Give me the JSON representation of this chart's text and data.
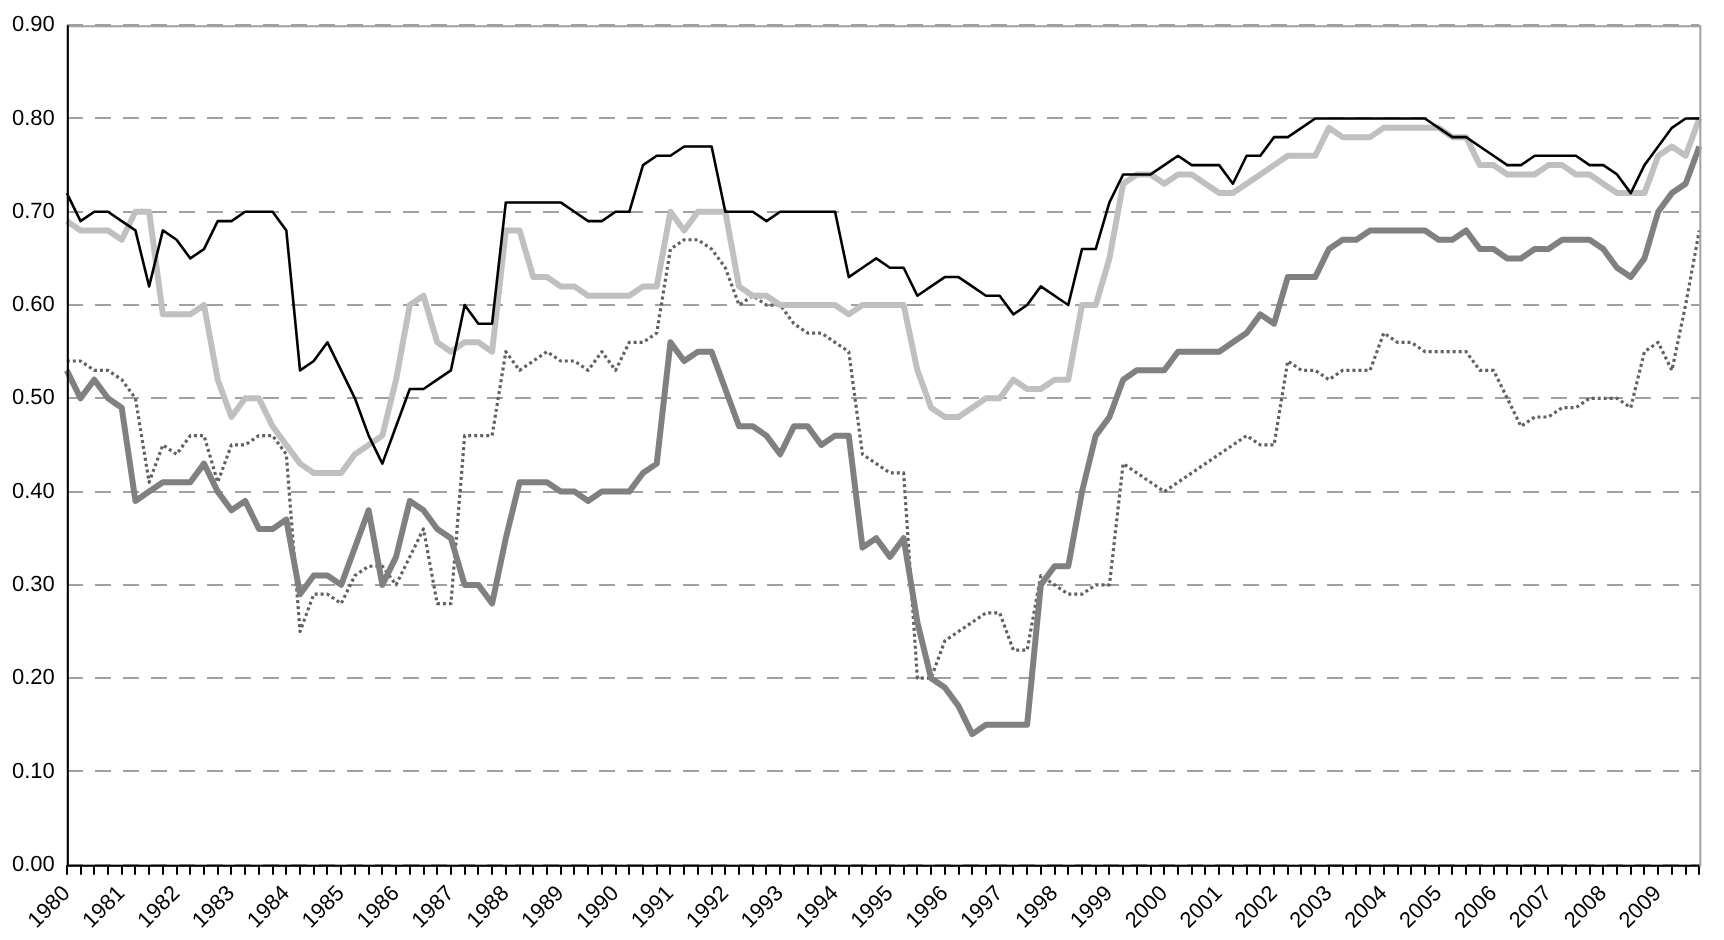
{
  "chart_data": {
    "type": "line",
    "categories": [
      "1980",
      null,
      null,
      null,
      "1981",
      null,
      null,
      null,
      "1982",
      null,
      null,
      null,
      "1983",
      null,
      null,
      null,
      "1984",
      null,
      null,
      null,
      "1985",
      null,
      null,
      null,
      "1986",
      null,
      null,
      null,
      "1987",
      null,
      null,
      null,
      "1988",
      null,
      null,
      null,
      "1989",
      null,
      null,
      null,
      "1990",
      null,
      null,
      null,
      "1991",
      null,
      null,
      null,
      "1992",
      null,
      null,
      null,
      "1993",
      null,
      null,
      null,
      "1994",
      null,
      null,
      null,
      "1995",
      null,
      null,
      null,
      "1996",
      null,
      null,
      null,
      "1997",
      null,
      null,
      null,
      "1998",
      null,
      null,
      null,
      "1999",
      null,
      null,
      null,
      "2000",
      null,
      null,
      null,
      "2001",
      null,
      null,
      null,
      "2002",
      null,
      null,
      null,
      "2003",
      null,
      null,
      null,
      "2004",
      null,
      null,
      null,
      "2005",
      null,
      null,
      null,
      "2006",
      null,
      null,
      null,
      "2007",
      null,
      null,
      null,
      "2008",
      null,
      null,
      null,
      "2009",
      null,
      null,
      null
    ],
    "series": [
      {
        "color": "#000000",
        "line_style": "solid",
        "values": [
          0.72,
          0.69,
          0.7,
          0.7,
          0.69,
          0.68,
          0.62,
          0.68,
          0.67,
          0.65,
          0.66,
          0.69,
          0.69,
          0.7,
          0.7,
          0.7,
          0.68,
          0.53,
          0.54,
          0.56,
          0.53,
          0.5,
          0.46,
          0.43,
          0.47,
          0.51,
          0.51,
          0.52,
          0.53,
          0.6,
          0.58,
          0.58,
          0.71,
          0.71,
          0.71,
          0.71,
          0.71,
          0.7,
          0.69,
          0.69,
          0.7,
          0.7,
          0.75,
          0.76,
          0.76,
          0.77,
          0.77,
          0.77,
          0.7,
          0.7,
          0.7,
          0.69,
          0.7,
          0.7,
          0.7,
          0.7,
          0.7,
          0.63,
          0.64,
          0.65,
          0.64,
          0.64,
          0.61,
          0.62,
          0.63,
          0.63,
          0.62,
          0.61,
          0.61,
          0.59,
          0.6,
          0.62,
          0.61,
          0.6,
          0.66,
          0.66,
          0.71,
          0.74,
          0.74,
          0.74,
          0.75,
          0.76,
          0.75,
          0.75,
          0.75,
          0.73,
          0.76,
          0.76,
          0.78,
          0.78,
          0.79,
          0.8,
          0.8,
          0.8,
          0.8,
          0.8,
          0.8,
          0.8,
          0.8,
          0.8,
          0.79,
          0.78,
          0.78,
          0.77,
          0.76,
          0.75,
          0.75,
          0.76,
          0.76,
          0.76,
          0.76,
          0.75,
          0.75,
          0.74,
          0.72,
          0.75,
          0.77,
          0.79,
          0.8,
          0.8
        ]
      },
      {
        "color": "#c0c0c0",
        "line_style": "solid",
        "values": [
          0.69,
          0.68,
          0.68,
          0.68,
          0.67,
          0.7,
          0.7,
          0.59,
          0.59,
          0.59,
          0.6,
          0.52,
          0.48,
          0.5,
          0.5,
          0.47,
          0.45,
          0.43,
          0.42,
          0.42,
          0.42,
          0.44,
          0.45,
          0.46,
          0.52,
          0.6,
          0.61,
          0.56,
          0.55,
          0.56,
          0.56,
          0.55,
          0.68,
          0.68,
          0.63,
          0.63,
          0.62,
          0.62,
          0.61,
          0.61,
          0.61,
          0.61,
          0.62,
          0.62,
          0.7,
          0.68,
          0.7,
          0.7,
          0.7,
          0.62,
          0.61,
          0.61,
          0.6,
          0.6,
          0.6,
          0.6,
          0.6,
          0.59,
          0.6,
          0.6,
          0.6,
          0.6,
          0.53,
          0.49,
          0.48,
          0.48,
          0.49,
          0.5,
          0.5,
          0.52,
          0.51,
          0.51,
          0.52,
          0.52,
          0.6,
          0.6,
          0.65,
          0.73,
          0.74,
          0.74,
          0.73,
          0.74,
          0.74,
          0.73,
          0.72,
          0.72,
          0.73,
          0.74,
          0.75,
          0.76,
          0.76,
          0.76,
          0.79,
          0.78,
          0.78,
          0.78,
          0.79,
          0.79,
          0.79,
          0.79,
          0.79,
          0.78,
          0.78,
          0.75,
          0.75,
          0.74,
          0.74,
          0.74,
          0.75,
          0.75,
          0.74,
          0.74,
          0.73,
          0.72,
          0.72,
          0.72,
          0.76,
          0.77,
          0.76,
          0.8
        ]
      },
      {
        "color": "#808080",
        "line_style": "solid",
        "values": [
          0.53,
          0.5,
          0.52,
          0.5,
          0.49,
          0.39,
          0.4,
          0.41,
          0.41,
          0.41,
          0.43,
          0.4,
          0.38,
          0.39,
          0.36,
          0.36,
          0.37,
          0.29,
          0.31,
          0.31,
          0.3,
          0.34,
          0.38,
          0.3,
          0.33,
          0.39,
          0.38,
          0.36,
          0.35,
          0.3,
          0.3,
          0.28,
          0.35,
          0.41,
          0.41,
          0.41,
          0.4,
          0.4,
          0.39,
          0.4,
          0.4,
          0.4,
          0.42,
          0.43,
          0.56,
          0.54,
          0.55,
          0.55,
          0.51,
          0.47,
          0.47,
          0.46,
          0.44,
          0.47,
          0.47,
          0.45,
          0.46,
          0.46,
          0.34,
          0.35,
          0.33,
          0.35,
          0.26,
          0.2,
          0.19,
          0.17,
          0.14,
          0.15,
          0.15,
          0.15,
          0.15,
          0.3,
          0.32,
          0.32,
          0.4,
          0.46,
          0.48,
          0.52,
          0.53,
          0.53,
          0.53,
          0.55,
          0.55,
          0.55,
          0.55,
          0.56,
          0.57,
          0.59,
          0.58,
          0.63,
          0.63,
          0.63,
          0.66,
          0.67,
          0.67,
          0.68,
          0.68,
          0.68,
          0.68,
          0.68,
          0.67,
          0.67,
          0.68,
          0.66,
          0.66,
          0.65,
          0.65,
          0.66,
          0.66,
          0.67,
          0.67,
          0.67,
          0.66,
          0.64,
          0.63,
          0.65,
          0.7,
          0.72,
          0.73,
          0.77
        ]
      },
      {
        "color": "#606060",
        "line_style": "dotted",
        "values": [
          0.54,
          0.54,
          0.53,
          0.53,
          0.52,
          0.5,
          0.41,
          0.45,
          0.44,
          0.46,
          0.46,
          0.41,
          0.45,
          0.45,
          0.46,
          0.46,
          0.44,
          0.25,
          0.29,
          0.29,
          0.28,
          0.31,
          0.32,
          0.32,
          0.3,
          0.33,
          0.36,
          0.28,
          0.28,
          0.46,
          0.46,
          0.46,
          0.55,
          0.53,
          0.54,
          0.55,
          0.54,
          0.54,
          0.53,
          0.55,
          0.53,
          0.56,
          0.56,
          0.57,
          0.66,
          0.67,
          0.67,
          0.66,
          0.64,
          0.6,
          0.61,
          0.6,
          0.6,
          0.58,
          0.57,
          0.57,
          0.56,
          0.55,
          0.44,
          0.43,
          0.42,
          0.42,
          0.2,
          0.2,
          0.24,
          0.25,
          0.26,
          0.27,
          0.27,
          0.23,
          0.23,
          0.31,
          0.3,
          0.29,
          0.29,
          0.3,
          0.3,
          0.43,
          0.42,
          0.41,
          0.4,
          0.41,
          0.42,
          0.43,
          0.44,
          0.45,
          0.46,
          0.45,
          0.45,
          0.54,
          0.53,
          0.53,
          0.52,
          0.53,
          0.53,
          0.53,
          0.57,
          0.56,
          0.56,
          0.55,
          0.55,
          0.55,
          0.55,
          0.53,
          0.53,
          0.5,
          0.47,
          0.48,
          0.48,
          0.49,
          0.49,
          0.5,
          0.5,
          0.5,
          0.49,
          0.55,
          0.56,
          0.53,
          0.6,
          0.68
        ]
      }
    ],
    "ylim": [
      0,
      0.9
    ],
    "yticks": [
      {
        "value": 0,
        "label": "0.00"
      },
      {
        "value": 0.1,
        "label": "0.10"
      },
      {
        "value": 0.2,
        "label": "0.20"
      },
      {
        "value": 0.3,
        "label": "0.30"
      },
      {
        "value": 0.4,
        "label": "0.40"
      },
      {
        "value": 0.5,
        "label": "0.50"
      },
      {
        "value": 0.6,
        "label": "0.60"
      },
      {
        "value": 0.7,
        "label": "0.70"
      },
      {
        "value": 0.8,
        "label": "0.80"
      },
      {
        "value": 0.9,
        "label": "0.90"
      }
    ],
    "grid": "y",
    "marker": "none",
    "legend": false
  }
}
